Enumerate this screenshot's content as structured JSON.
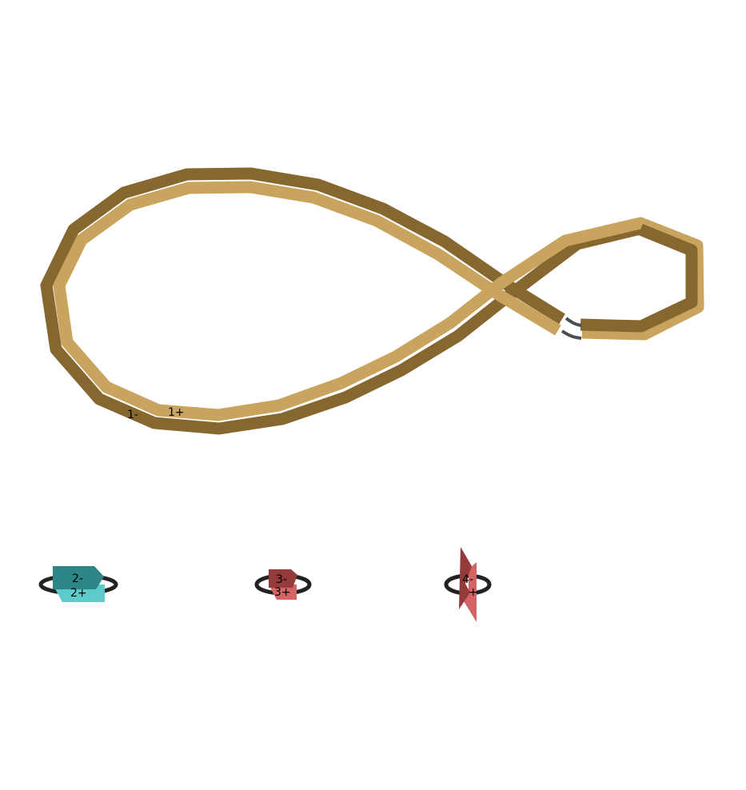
{
  "colors": {
    "loop_dark": "#85672f",
    "loop_light": "#c9a45f",
    "connector": "#4a4d55",
    "ring": "#222222",
    "teal_dark": "#2d8586",
    "teal_light": "#5ecbcb",
    "red_dark": "#953a3a",
    "red_light": "#d46464"
  },
  "strands": {
    "s1": {
      "minus_label": "1-",
      "plus_label": "1+"
    },
    "s2": {
      "minus_label": "2-",
      "plus_label": "2+"
    },
    "s3": {
      "minus_label": "3-",
      "plus_label": "3+"
    },
    "s4": {
      "minus_label": "4-",
      "plus_label": "+"
    }
  }
}
